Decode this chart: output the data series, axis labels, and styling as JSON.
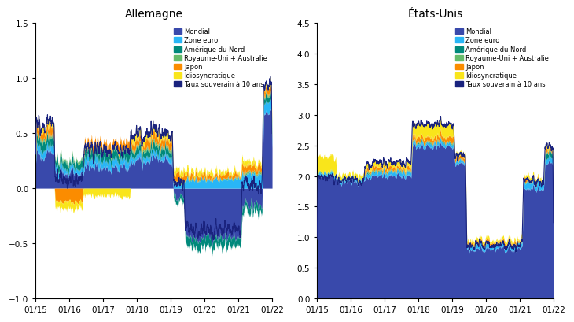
{
  "title_left": "Allemagne",
  "title_right": "États-Unis",
  "legend_labels": [
    "Mondial",
    "Zone euro",
    "Amérique du Nord",
    "Royaume-Uni + Australie",
    "Japon",
    "Idiosyncratique",
    "Taux souverain à 10 ans"
  ],
  "colors": {
    "mondial": "#3949ab",
    "zone_euro": "#29b6f6",
    "amerique_nord": "#00897b",
    "royaume_uni": "#66bb6a",
    "japon": "#fb8c00",
    "idiosyncratique": "#f9e51b",
    "line": "#1a237e"
  },
  "de_ylim": [
    -1.0,
    1.5
  ],
  "de_yticks": [
    -1.0,
    -0.5,
    0.0,
    0.5,
    1.0,
    1.5
  ],
  "us_ylim": [
    0.0,
    4.5
  ],
  "us_yticks": [
    0.0,
    0.5,
    1.0,
    1.5,
    2.0,
    2.5,
    3.0,
    3.5,
    4.0,
    4.5
  ],
  "xtick_labels": [
    "01/15",
    "01/16",
    "01/17",
    "01/18",
    "01/19",
    "01/20",
    "01/21",
    "01/22"
  ],
  "n_points": 1900,
  "background_color": "#ffffff",
  "figsize": [
    7.3,
    4.1
  ],
  "dpi": 100,
  "de_mean": 0.0,
  "us_mean": 2.0
}
